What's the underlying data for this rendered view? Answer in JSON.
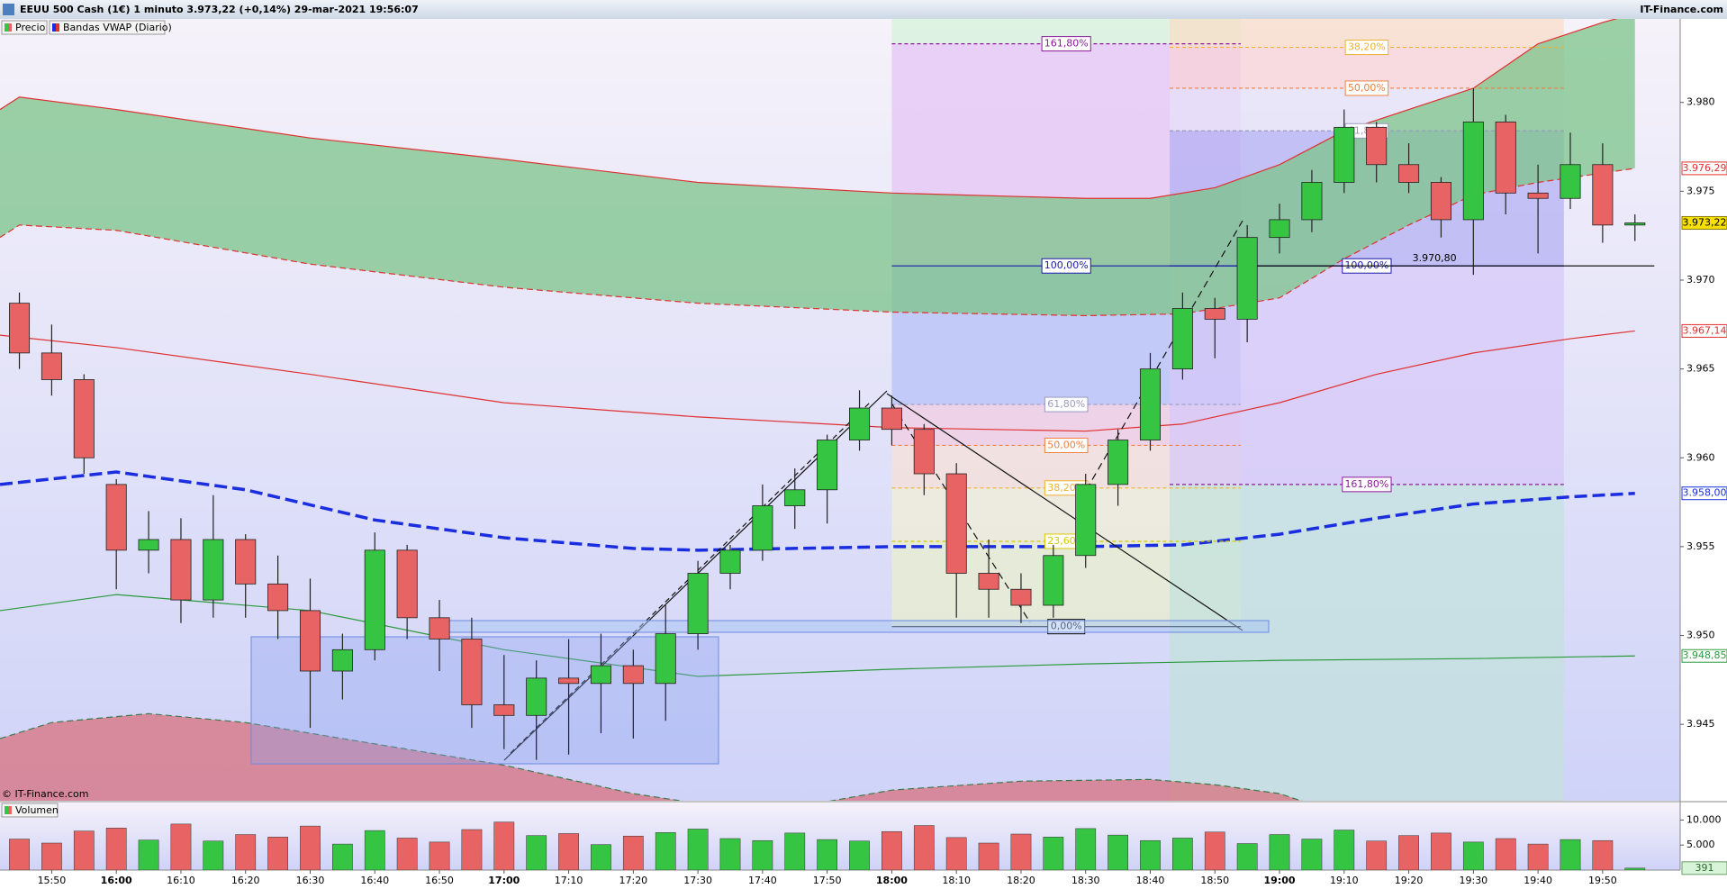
{
  "chart_data": [
    {
      "type": "candlestick",
      "title": "EEUU 500 Cash (1€) 1 minuto 3.973,22 (+0,14%) 29-mar-2021 19:56:07",
      "source": "IT-Finance.com",
      "copyright": "© IT-Finance.com",
      "name": "Precio",
      "up_color": "#36c443",
      "down_color": "#e86464",
      "x": [
        "15:45",
        "15:50",
        "15:55",
        "16:00",
        "16:05",
        "16:10",
        "16:15",
        "16:20",
        "16:25",
        "16:30",
        "16:35",
        "16:40",
        "16:45",
        "16:50",
        "16:55",
        "17:00",
        "17:05",
        "17:10",
        "17:15",
        "17:20",
        "17:25",
        "17:30",
        "17:35",
        "17:40",
        "17:45",
        "17:50",
        "17:55",
        "18:00",
        "18:05",
        "18:10",
        "18:15",
        "18:20",
        "18:25",
        "18:30",
        "18:35",
        "18:40",
        "18:45",
        "18:50",
        "18:55",
        "19:00",
        "19:05",
        "19:10",
        "19:15",
        "19:20",
        "19:25",
        "19:30",
        "19:35",
        "19:40",
        "19:45",
        "19:50",
        "19:55"
      ],
      "open": [
        3.9687,
        3.9659,
        3.9644,
        3.9585,
        3.9548,
        3.9554,
        3.952,
        3.9554,
        3.9529,
        3.9514,
        3.948,
        3.9492,
        3.9548,
        3.951,
        3.9498,
        3.9461,
        3.9455,
        3.9476,
        3.9473,
        3.9483,
        3.9473,
        3.9501,
        3.9535,
        3.9548,
        3.9573,
        3.9582,
        3.961,
        3.9628,
        3.9616,
        3.9591,
        3.9535,
        3.9526,
        3.9517,
        3.9545,
        3.9585,
        3.961,
        3.965,
        3.9684,
        3.9678,
        3.9724,
        3.9734,
        3.9755,
        3.9786,
        3.9765,
        3.9755,
        3.9734,
        3.9789,
        3.9749,
        3.9746,
        3.9765,
        3.9731
      ],
      "high": [
        3.9693,
        3.9675,
        3.9647,
        3.9588,
        3.957,
        3.9566,
        3.9579,
        3.9557,
        3.9545,
        3.9532,
        3.9501,
        3.9558,
        3.9551,
        3.952,
        3.951,
        3.9489,
        3.9486,
        3.9498,
        3.9501,
        3.9492,
        3.9517,
        3.9542,
        3.9551,
        3.9585,
        3.9594,
        3.9613,
        3.9638,
        3.9635,
        3.9619,
        3.9597,
        3.9554,
        3.9535,
        3.9551,
        3.9591,
        3.9616,
        3.9659,
        3.9693,
        3.969,
        3.9731,
        3.9743,
        3.9762,
        3.9796,
        3.9789,
        3.9777,
        3.9758,
        3.9808,
        3.9793,
        3.9765,
        3.9783,
        3.9777,
        3.9737
      ],
      "low": [
        3.965,
        3.9635,
        3.9591,
        3.9526,
        3.9535,
        3.9507,
        3.951,
        3.951,
        3.9498,
        3.9448,
        3.9464,
        3.9486,
        3.9498,
        3.948,
        3.9448,
        3.9436,
        3.943,
        3.9433,
        3.9445,
        3.9442,
        3.9452,
        3.9492,
        3.9526,
        3.9542,
        3.956,
        3.9563,
        3.9604,
        3.9607,
        3.9579,
        3.951,
        3.951,
        3.9507,
        3.951,
        3.9538,
        3.9573,
        3.9604,
        3.9644,
        3.9656,
        3.9665,
        3.9715,
        3.9727,
        3.9749,
        3.9755,
        3.9749,
        3.9724,
        3.9703,
        3.9737,
        3.9715,
        3.974,
        3.9721,
        3.9722
      ],
      "close": [
        3.9659,
        3.9644,
        3.96,
        3.9548,
        3.9554,
        3.952,
        3.9554,
        3.9529,
        3.9514,
        3.948,
        3.9492,
        3.9548,
        3.951,
        3.9498,
        3.9461,
        3.9455,
        3.9476,
        3.9473,
        3.9483,
        3.9473,
        3.9501,
        3.9535,
        3.9548,
        3.9573,
        3.9582,
        3.961,
        3.9628,
        3.9616,
        3.9591,
        3.9535,
        3.9526,
        3.9517,
        3.9545,
        3.9585,
        3.961,
        3.965,
        3.9684,
        3.9678,
        3.9724,
        3.9734,
        3.9755,
        3.9786,
        3.9765,
        3.9755,
        3.9734,
        3.9789,
        3.9749,
        3.9746,
        3.9765,
        3.9731,
        3.97322
      ],
      "last": {
        "value": 3.97322,
        "label": "3.973,22"
      },
      "xlim": [
        "15:42",
        "20:02"
      ],
      "xticks": [
        "15:50",
        "16:00",
        "16:10",
        "16:20",
        "16:30",
        "16:40",
        "16:50",
        "17:00",
        "17:10",
        "17:20",
        "17:30",
        "17:40",
        "17:50",
        "18:00",
        "18:10",
        "18:20",
        "18:30",
        "18:40",
        "18:50",
        "19:00",
        "19:10",
        "19:20",
        "19:30",
        "19:40",
        "19:50"
      ],
      "ylim": [
        3.9407,
        3.9847
      ],
      "yticks": [
        {
          "value": 3.945,
          "label": "3.945"
        },
        {
          "value": 3.95,
          "label": "3.950"
        },
        {
          "value": 3.955,
          "label": "3.955"
        },
        {
          "value": 3.96,
          "label": "3.960"
        },
        {
          "value": 3.965,
          "label": "3.965"
        },
        {
          "value": 3.97,
          "label": "3.970"
        },
        {
          "value": 3.975,
          "label": "3.975"
        },
        {
          "value": 3.98,
          "label": "3.980"
        }
      ],
      "grid": false,
      "bands": {
        "name": "Bandas VWAP  (Diario)",
        "lines": [
          {
            "color": "#e03030",
            "style": "solid",
            "width": 1.2,
            "fill": {
              "color": "#7cc48a",
              "to": "next"
            },
            "x": [
              "15:42",
              "15:45",
              "16:00",
              "16:30",
              "17:00",
              "17:30",
              "18:00",
              "18:30",
              "18:40",
              "18:50",
              "19:00",
              "19:10",
              "19:20",
              "19:30",
              "19:40",
              "19:50",
              "19:55"
            ],
            "values": [
              3.9796,
              3.9803,
              3.9796,
              3.978,
              3.9768,
              3.9755,
              3.9749,
              3.9746,
              3.9746,
              3.9752,
              3.9765,
              3.9784,
              3.9796,
              3.9808,
              3.9833,
              3.9845,
              3.985
            ]
          },
          {
            "color": "#e03030",
            "style": "dashed",
            "width": 1.2,
            "x": [
              "15:42",
              "15:45",
              "16:00",
              "16:30",
              "17:00",
              "17:30",
              "18:00",
              "18:30",
              "18:45",
              "19:00",
              "19:10",
              "19:20",
              "19:30",
              "19:40",
              "19:55"
            ],
            "values": [
              3.9724,
              3.9731,
              3.9728,
              3.9709,
              3.9696,
              3.9687,
              3.9682,
              3.968,
              3.9681,
              3.969,
              3.9712,
              3.9731,
              3.9748,
              3.9755,
              3.97629
            ],
            "value_labels": [
              null,
              null,
              null,
              null,
              null,
              null,
              null,
              null,
              null,
              null,
              null,
              null,
              null,
              null,
              "3.976,29"
            ]
          },
          {
            "color": "#e03030",
            "style": "solid",
            "width": 1.2,
            "x": [
              "15:42",
              "16:00",
              "16:30",
              "17:00",
              "17:30",
              "18:00",
              "18:30",
              "18:45",
              "19:00",
              "19:15",
              "19:30",
              "19:45",
              "19:55"
            ],
            "values": [
              3.9669,
              3.9662,
              3.9647,
              3.9631,
              3.9623,
              3.9617,
              3.9615,
              3.9619,
              3.9631,
              3.9647,
              3.9659,
              3.9667,
              3.96714
            ],
            "value_labels": [
              null,
              null,
              null,
              null,
              null,
              null,
              null,
              null,
              null,
              null,
              null,
              null,
              "3.967,14"
            ]
          },
          {
            "color": "#1a2ee0",
            "style": "dashed",
            "width": 3.5,
            "x": [
              "15:42",
              "16:00",
              "16:20",
              "16:40",
              "17:00",
              "17:20",
              "17:30",
              "18:00",
              "18:30",
              "18:45",
              "19:00",
              "19:15",
              "19:30",
              "19:45",
              "19:55"
            ],
            "values": [
              3.9585,
              3.9592,
              3.9582,
              3.9565,
              3.9555,
              3.9549,
              3.9548,
              3.955,
              3.955,
              3.9551,
              3.9557,
              3.9566,
              3.9574,
              3.9578,
              3.958
            ],
            "value_labels": [
              null,
              null,
              null,
              null,
              null,
              null,
              null,
              null,
              null,
              null,
              null,
              null,
              null,
              null,
              "3.958,00"
            ]
          },
          {
            "color": "#2a9a3a",
            "style": "solid",
            "width": 1.2,
            "x": [
              "15:42",
              "16:00",
              "16:30",
              "17:00",
              "17:30",
              "18:00",
              "18:30",
              "19:00",
              "19:30",
              "19:55"
            ],
            "values": [
              3.9514,
              3.9523,
              3.9514,
              3.9492,
              3.9477,
              3.9481,
              3.9484,
              3.9486,
              3.9487,
              3.94885
            ],
            "value_labels": [
              null,
              null,
              null,
              null,
              null,
              null,
              null,
              null,
              null,
              "3.948,85"
            ]
          },
          {
            "color": "#3a7a4a",
            "style": "dashed",
            "width": 1.2,
            "fill": {
              "color": "#d8707e",
              "to": "bottom"
            },
            "x": [
              "15:42",
              "15:50",
              "16:05",
              "16:20",
              "16:40",
              "17:00",
              "17:20",
              "17:40",
              "18:00",
              "18:20",
              "18:40",
              "18:50",
              "19:00",
              "19:10"
            ],
            "values": [
              3.9442,
              3.9451,
              3.9456,
              3.9451,
              3.9439,
              3.9427,
              3.9411,
              3.94,
              3.9413,
              3.9418,
              3.9419,
              3.9416,
              3.9411,
              3.9399
            ]
          }
        ]
      },
      "fibonacci": [
        {
          "x": [
            "18:00",
            "18:54"
          ],
          "levels": [
            {
              "label": "161,80%",
              "value": 3.9833,
              "color": "#8b1a9b",
              "style": "dashed"
            },
            {
              "label": "100,00%",
              "value": 3.9708,
              "color": "#1a1aaa",
              "style": "solid"
            },
            {
              "label": "61,80%",
              "value": 3.963,
              "color": "#9a9ac0",
              "style": "dashed"
            },
            {
              "label": "50,00%",
              "value": 3.9607,
              "color": "#f08040",
              "style": "dashed"
            },
            {
              "label": "38,20%",
              "value": 3.9583,
              "color": "#f0b030",
              "style": "dashed"
            },
            {
              "label": "23,60%",
              "value": 3.9553,
              "color": "#d8c800",
              "style": "dashed"
            },
            {
              "label": "0,00%",
              "value": 3.9505,
              "color": "#000000",
              "style": "solid"
            }
          ],
          "zones": [
            "#d4f2d8",
            "#e4c4f4",
            "#b4c0f6",
            "#f2cce0",
            "#f6e0d6",
            "#f2eed4",
            "#eaf0cc",
            "transparent"
          ]
        },
        {
          "x": [
            "18:43",
            "19:44"
          ],
          "levels": [
            {
              "label": "38,20%",
              "value": 3.9831,
              "color": "#f0b030",
              "style": "dashed"
            },
            {
              "label": "50,00%",
              "value": 3.9808,
              "color": "#f08040",
              "style": "dashed"
            },
            {
              "label": "61,80%",
              "value": 3.9784,
              "color": "#9a9ac0",
              "style": "dashed"
            },
            {
              "label": "100,00%",
              "value": 3.9708,
              "color": "#1a1aaa",
              "style": "solid"
            },
            {
              "label": "161,80%",
              "value": 3.9585,
              "color": "#8b1a9b",
              "style": "dashed"
            }
          ],
          "zones": [
            "#fadcc6",
            "#f8d2d6",
            "#e6e2f8",
            "#b2aef2",
            "#d6c8f8",
            "#c2e2dc"
          ]
        }
      ],
      "ref_lines": [
        {
          "label": "3.970,80",
          "value": 3.9708,
          "x": [
            "18:54",
            "19:58"
          ]
        }
      ]
    },
    {
      "type": "bar",
      "name": "Volumen",
      "up_color": "#36c443",
      "down_color": "#e86464",
      "x": [
        "15:45",
        "15:50",
        "15:55",
        "16:00",
        "16:05",
        "16:10",
        "16:15",
        "16:20",
        "16:25",
        "16:30",
        "16:35",
        "16:40",
        "16:45",
        "16:50",
        "16:55",
        "17:00",
        "17:05",
        "17:10",
        "17:15",
        "17:20",
        "17:25",
        "17:30",
        "17:35",
        "17:40",
        "17:45",
        "17:50",
        "17:55",
        "18:00",
        "18:05",
        "18:10",
        "18:15",
        "18:20",
        "18:25",
        "18:30",
        "18:35",
        "18:40",
        "18:45",
        "18:50",
        "18:55",
        "19:00",
        "19:05",
        "19:10",
        "19:15",
        "19:20",
        "19:25",
        "19:30",
        "19:35",
        "19:40",
        "19:45",
        "19:50",
        "19:55"
      ],
      "values": [
        6200,
        5400,
        7800,
        8400,
        6000,
        9200,
        5800,
        7100,
        6600,
        8800,
        5200,
        7900,
        6400,
        5600,
        8100,
        9600,
        6900,
        7300,
        5100,
        6800,
        7500,
        8200,
        6300,
        5900,
        7400,
        6100,
        5800,
        7700,
        8900,
        6500,
        5400,
        7200,
        6600,
        8300,
        7000,
        5900,
        6400,
        7600,
        5300,
        7100,
        6200,
        8000,
        5800,
        6900,
        7400,
        5600,
        6300,
        5200,
        6100,
        5900,
        391
      ],
      "ylim": [
        0,
        13500
      ],
      "yticks": [
        {
          "value": 5000,
          "label": "5.000"
        },
        {
          "value": 10000,
          "label": "10.000"
        }
      ]
    }
  ]
}
